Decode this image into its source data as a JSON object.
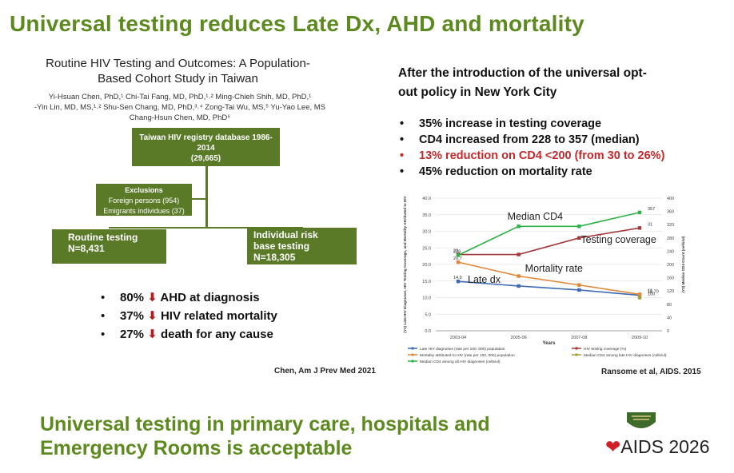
{
  "slide": {
    "title": "Universal testing reduces Late Dx, AHD and mortality",
    "bottom_title_line1": "Universal testing in primary care, hospitals and",
    "bottom_title_line2": "Emergency Rooms is acceptable",
    "logo_ribbon": "❤",
    "logo_text": "AIDS 2026"
  },
  "left": {
    "paper_title_line1": "Routine HIV Testing and Outcomes: A Population-",
    "paper_title_line2": "Based Cohort Study in Taiwan",
    "authors_line1": "Yi-Hsuan Chen, PhD,¹ Chi-Tai Fang, MD, PhD,¹˒² Ming-Chieh Shih, MD, PhD,¹",
    "authors_line2": "-Yin Lin, MD, MS,¹˒² Shu-Sen Chang, MD, PhD,³˒⁴ Zong-Tai Wu, MS,⁵ Yu-Yao Lee, MS",
    "authors_line3": "Chang-Hsun Chen, MD, PhD⁶",
    "registry_line1": "Taiwan HIV registry database 1986-",
    "registry_line2": "2014",
    "registry_line3": "(29,665)",
    "exclusions_head": "Exclusions",
    "exclusions_1": "Foreign persons (954)",
    "exclusions_2": "Emigrants individues (37)",
    "routine_line1": "Routine testing",
    "routine_line2": "N=8,431",
    "indiv_line1": "Individual risk",
    "indiv_line2": "base testing",
    "indiv_line3": "N=18,305",
    "bullets": [
      {
        "pct": "80%",
        "text": "AHD at diagnosis"
      },
      {
        "pct": "37%",
        "text": "HIV related mortality"
      },
      {
        "pct": "27%",
        "text": "death for any cause"
      }
    ],
    "bullet_symbol": "•",
    "down_arrow": "⬇",
    "citation": "Chen, Am J Prev Med 2021"
  },
  "right": {
    "heading_line1": "After the introduction of the universal opt-",
    "heading_line2": "out policy in New York City",
    "bullets": [
      "35% increase in testing coverage",
      "CD4 increased from 228 to 357 (median)",
      "13% reduction on CD4 <200 (from 30 to 26%)",
      "45% reduction on mortality rate"
    ],
    "citation": "Ransome et al, AIDS. 2015"
  },
  "chart_data": {
    "type": "line",
    "categories": [
      "2003-04",
      "2005-06",
      "2007-08",
      "2009-10"
    ],
    "xlabel": "Years",
    "ylabel": "(Y1) Late HIV Diagnoses, HIV Testing Coverage, and Mortality Attributed to HIV",
    "y2label": "(Y2) Median CD4 Count (cells/ul)",
    "ylim": [
      0,
      40
    ],
    "y_ticks": [
      "0.0",
      "5.0",
      "10.0",
      "15.0",
      "20.0",
      "25.0",
      "30.0",
      "35.0",
      "40.0"
    ],
    "y2lim": [
      0,
      400
    ],
    "y2_ticks": [
      "0",
      "40",
      "80",
      "120",
      "160",
      "200",
      "240",
      "280",
      "320",
      "360",
      "400"
    ],
    "series": [
      {
        "name": "Late HIV diagnoses (rate per 100, 000) population",
        "axis": "y1",
        "color": "#3e6ab3",
        "values": [
          14.9,
          13.5,
          12.3,
          10.7
        ],
        "annotation": "Late dx",
        "labels": [
          {
            "i": 0,
            "text": "14.9"
          },
          {
            "i": 3,
            "text": "10.70"
          }
        ]
      },
      {
        "name": "HIV testing coverage (%)",
        "axis": "y1",
        "color": "#a33a3a",
        "values": [
          23,
          23,
          28,
          31
        ],
        "annotation": "Testing coverage",
        "labels": [
          {
            "i": 0,
            "text": "23"
          },
          {
            "i": 3,
            "text": "31"
          }
        ]
      },
      {
        "name": "Mortality attributed to HIV (rate per 100, 000) population",
        "axis": "y1",
        "color": "#e0883a",
        "values": [
          20.7,
          16.5,
          13.8,
          11
        ],
        "annotation": "Mortality rate",
        "labels": [
          {
            "i": 0,
            "text": "20.7"
          },
          {
            "i": 3,
            "text": "11"
          }
        ]
      },
      {
        "name": "Median CD4 among late HIV diagnoses (cells/ul)",
        "axis": "y2",
        "color": "#a0a040",
        "values": [
          null,
          null,
          null,
          100
        ],
        "annotation": "",
        "labels": [
          {
            "i": 3,
            "text": "100"
          }
        ]
      },
      {
        "name": "Median CD4 among all HIV diagnoses (cells/ul)",
        "axis": "y2",
        "color": "#2fb24a",
        "values": [
          228,
          315,
          315,
          357
        ],
        "annotation": "Median CD4",
        "labels": [
          {
            "i": 0,
            "text": "228"
          },
          {
            "i": 3,
            "text": "357"
          }
        ]
      }
    ]
  }
}
